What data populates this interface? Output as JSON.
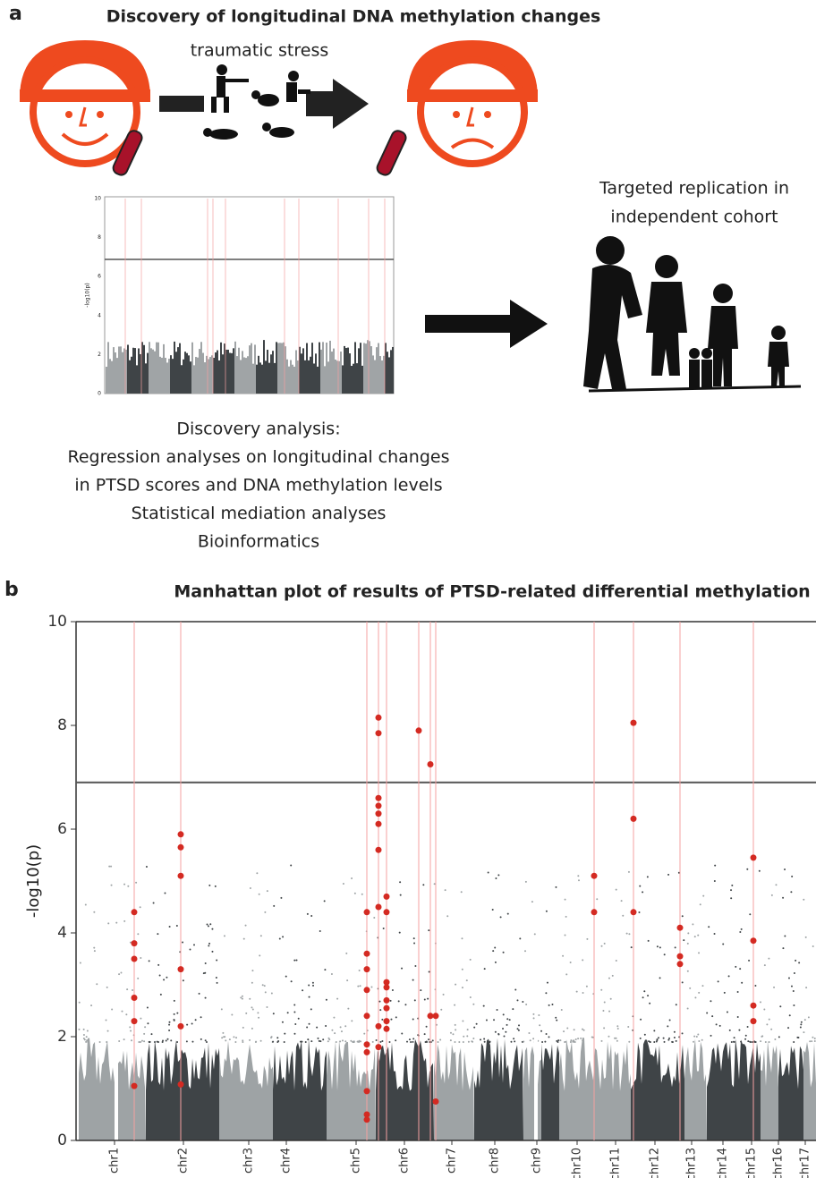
{
  "panel_a": {
    "letter": "a",
    "title": "Discovery of longitudinal DNA methylation changes",
    "stress_label": "traumatic stress",
    "replication_lines": [
      "Targeted replication in",
      "independent cohort"
    ],
    "discovery_lines": [
      "Discovery analysis:",
      "Regression analyses on  longitudinal changes",
      "in PTSD scores and DNA methylation levels",
      "Statistical mediation analyses",
      "Bioinformatics"
    ],
    "thumbnail": {
      "ylabel": "-log10(p)",
      "yticks": [
        0,
        2,
        4,
        6,
        8,
        10
      ]
    }
  },
  "chart_data": {
    "type": "manhattan",
    "letter": "b",
    "title": "Manhattan plot of results of PTSD-related differential methylation",
    "ylabel": "-log10(p)",
    "categories": [
      "chr1",
      "chr2",
      "chr3",
      "chr4",
      "chr5",
      "chr6",
      "chr7",
      "chr8",
      "chr9",
      "chr10",
      "chr11",
      "chr12",
      "chr13",
      "chr14",
      "chr15",
      "chr16",
      "chr17"
    ],
    "ylim": [
      0,
      10
    ],
    "yticks": [
      0,
      2,
      4,
      6,
      8,
      10
    ],
    "threshold": 6.9,
    "color": "#d42a22",
    "loci": [
      {
        "values": [
          4.4,
          3.8,
          3.5,
          2.75,
          2.3,
          1.05
        ]
      },
      {
        "values": [
          5.9,
          5.65,
          5.1,
          3.3,
          2.2,
          1.08
        ]
      },
      {
        "values": [
          4.4,
          3.6,
          3.3,
          2.9,
          2.4,
          1.85,
          1.7,
          0.95,
          0.5,
          0.4
        ]
      },
      {
        "values": [
          8.15,
          7.85,
          6.6,
          6.45,
          6.3,
          6.1,
          5.6,
          4.5,
          2.2,
          1.8
        ]
      },
      {
        "values": [
          4.7,
          4.4,
          3.05,
          2.95,
          2.7,
          2.55,
          2.3,
          2.15
        ]
      },
      {
        "values": [
          7.9
        ]
      },
      {
        "values": [
          7.25,
          2.4
        ]
      },
      {
        "values": [
          2.4,
          0.75
        ]
      },
      {
        "values": [
          5.1,
          4.4
        ]
      },
      {
        "values": [
          8.05,
          6.2,
          4.4
        ]
      },
      {
        "values": [
          4.1,
          3.55,
          3.4
        ]
      },
      {
        "values": [
          5.45,
          3.85,
          2.6,
          2.3
        ]
      }
    ]
  }
}
